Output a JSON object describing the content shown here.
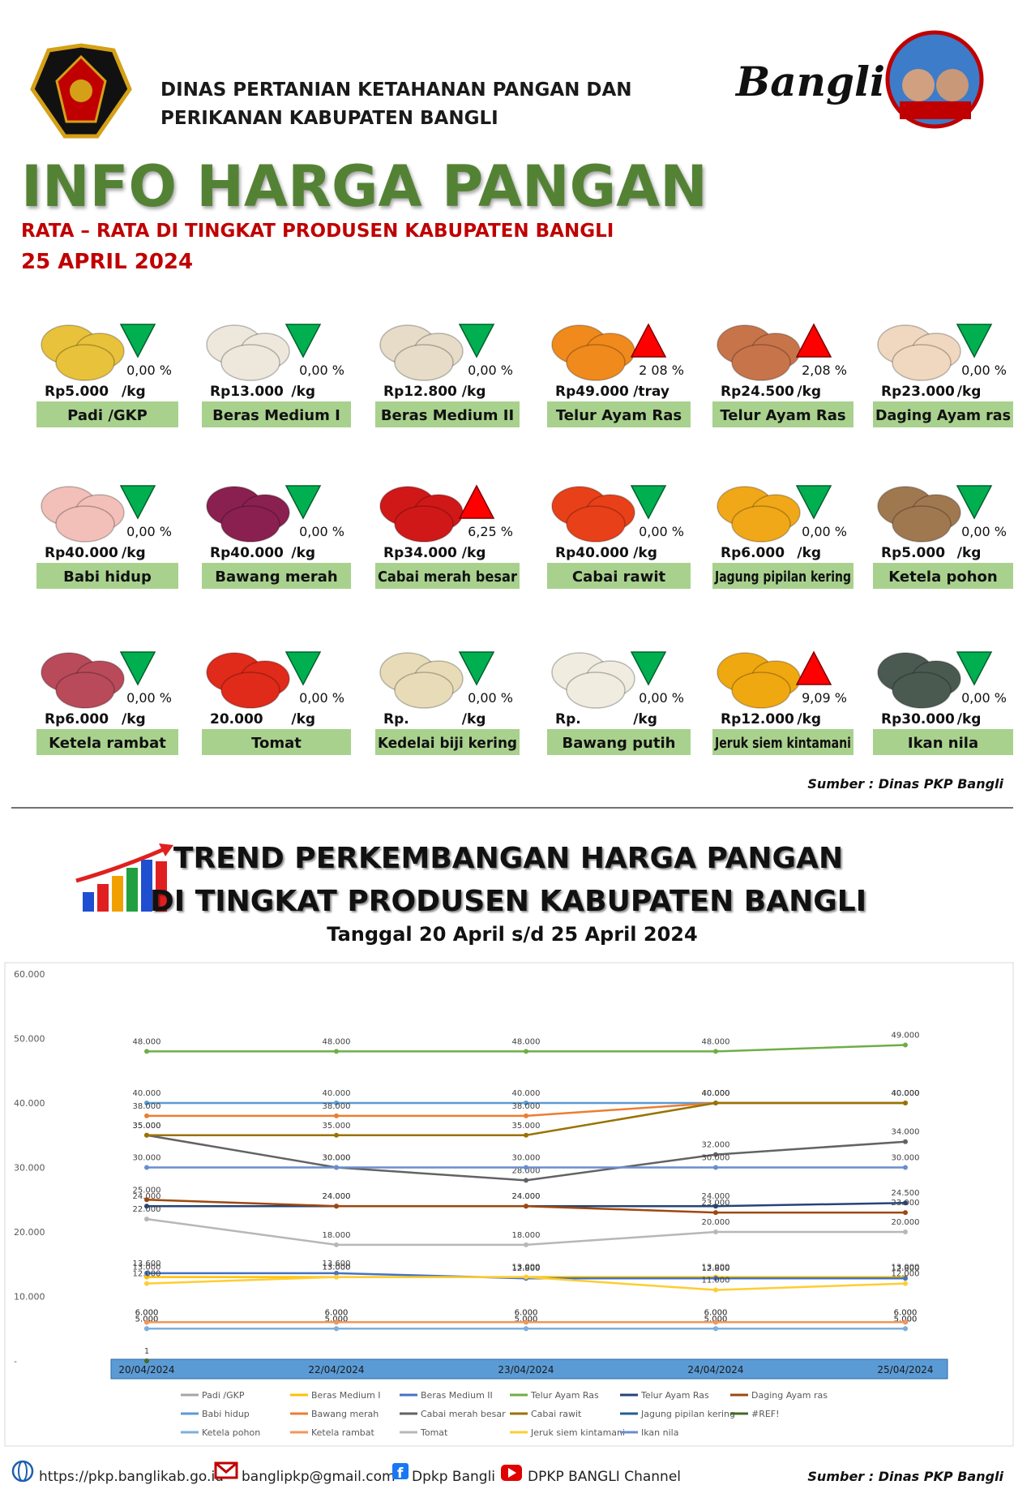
{
  "header": {
    "org": [
      "DINAS PERTANIAN KETAHANAN PANGAN DAN",
      "PERIKANAN KABUPATEN BANGLI"
    ],
    "brand": "Bangli",
    "title": "INFO HARGA PANGAN",
    "subtitle": "RATA – RATA DI TINGKAT PRODUSEN KABUPATEN BANGLI",
    "date": "25 APRIL 2024"
  },
  "items": [
    {
      "name": "Padi /GKP",
      "price": "Rp5.000",
      "unit": "/kg",
      "change": "0,00 %",
      "direction": "down"
    },
    {
      "name": "Beras Medium I",
      "price": "Rp13.000",
      "unit": "/kg",
      "change": "0,00 %",
      "direction": "down"
    },
    {
      "name": "Beras Medium II",
      "price": "Rp12.800",
      "unit": "/kg",
      "change": "0,00 %",
      "direction": "down"
    },
    {
      "name": "Telur Ayam Ras",
      "price": "Rp49.000",
      "unit": "/tray",
      "change": "2 08 %",
      "direction": "up"
    },
    {
      "name": "Telur Ayam Ras",
      "price": "Rp24.500",
      "unit": "/kg",
      "change": "2,08 %",
      "direction": "up"
    },
    {
      "name": "Daging Ayam ras",
      "price": "Rp23.000",
      "unit": "/kg",
      "change": "0,00 %",
      "direction": "down"
    },
    {
      "name": "Babi hidup",
      "price": "Rp40.000",
      "unit": "/kg",
      "change": "0,00 %",
      "direction": "down"
    },
    {
      "name": "Bawang merah",
      "price": "Rp40.000",
      "unit": "/kg",
      "change": "0,00 %",
      "direction": "down"
    },
    {
      "name": "Cabai merah besar",
      "price": "Rp34.000",
      "unit": "/kg",
      "change": "6,25 %",
      "direction": "up"
    },
    {
      "name": "Cabai rawit",
      "price": "Rp40.000",
      "unit": "/kg",
      "change": "0,00 %",
      "direction": "down"
    },
    {
      "name": "Jagung pipilan kering",
      "price": "Rp6.000",
      "unit": "/kg",
      "change": "0,00 %",
      "direction": "down"
    },
    {
      "name": "Ketela pohon",
      "price": "Rp5.000",
      "unit": "/kg",
      "change": "0,00 %",
      "direction": "down"
    },
    {
      "name": "Ketela rambat",
      "price": "Rp6.000",
      "unit": "/kg",
      "change": "0,00 %",
      "direction": "down"
    },
    {
      "name": "Tomat",
      "price": "20.000",
      "unit": "/kg",
      "change": "0,00 %",
      "direction": "down"
    },
    {
      "name": "Kedelai biji kering",
      "price": "Rp.",
      "unit": "/kg",
      "change": "0,00 %",
      "direction": "down"
    },
    {
      "name": "Bawang putih",
      "price": "Rp.",
      "unit": "/kg",
      "change": "0,00 %",
      "direction": "down"
    },
    {
      "name": "Jeruk siem kintamani",
      "price": "Rp12.000",
      "unit": "/kg",
      "change": "9,09 %",
      "direction": "up"
    },
    {
      "name": "Ikan nila",
      "price": "Rp30.000",
      "unit": "/kg",
      "change": "0,00 %",
      "direction": "down"
    }
  ],
  "source": "Sumber : Dinas PKP Bangli",
  "trend": {
    "title": [
      "TREND PERKEMBANGAN HARGA PANGAN",
      "DI TINGKAT PRODUSEN KABUPATEN BANGLI"
    ],
    "date": "Tanggal 20 April s/d 25 April 2024"
  },
  "chart_data": {
    "type": "line",
    "categories": [
      "20/04/2024",
      "22/04/2024",
      "23/04/2024",
      "24/04/2024",
      "25/04/2024"
    ],
    "ylim": [
      0,
      60000
    ],
    "yticks": [
      {
        "value": 0,
        "label": "-"
      },
      {
        "value": 10000,
        "label": "10.000"
      },
      {
        "value": 20000,
        "label": "20.000"
      },
      {
        "value": 30000,
        "label": "30.000"
      },
      {
        "value": 40000,
        "label": "40.000"
      },
      {
        "value": 50000,
        "label": "50.000"
      },
      {
        "value": 60000,
        "label": "60.000"
      }
    ],
    "grid": false,
    "series": [
      {
        "name": "Padi /GKP",
        "color": "#a5a5a5",
        "values": [
          5000,
          5000,
          5000,
          5000,
          5000
        ],
        "value_labels": [
          "5.000",
          "5.000",
          "5.000",
          "5.000",
          "5.000"
        ]
      },
      {
        "name": "Beras Medium I",
        "color": "#ffc000",
        "values": [
          13000,
          13000,
          13000,
          13000,
          13000
        ],
        "value_labels": [
          "13.000",
          "13.000",
          "13.000",
          "13.000",
          "13.000"
        ]
      },
      {
        "name": "Beras Medium II",
        "color": "#4472c4",
        "values": [
          13600,
          13600,
          12800,
          12800,
          12800
        ],
        "value_labels": [
          "13.600",
          "13.600",
          "12.800",
          "12.800",
          "12.800"
        ]
      },
      {
        "name": "Telur Ayam Ras",
        "color": "#70ad47",
        "values": [
          48000,
          48000,
          48000,
          48000,
          49000
        ],
        "value_labels": [
          "48.000",
          "48.000",
          "48.000",
          "48.000",
          "49.000"
        ]
      },
      {
        "name": "Telur Ayam Ras",
        "color": "#264478",
        "values": [
          24000,
          24000,
          24000,
          24000,
          24500
        ],
        "value_labels": [
          "24.000",
          "24.000",
          "24.000",
          "24.000",
          "24.500"
        ]
      },
      {
        "name": "Daging Ayam ras",
        "color": "#9e480e",
        "values": [
          25000,
          24000,
          24000,
          23000,
          23000
        ],
        "value_labels": [
          "25.000",
          "24.000",
          "24.000",
          "23.000",
          "23.000"
        ]
      },
      {
        "name": "Babi hidup",
        "color": "#5b9bd5",
        "values": [
          40000,
          40000,
          40000,
          40000,
          40000
        ],
        "value_labels": [
          "40.000",
          "40.000",
          "40.000",
          "40.000",
          "40.000"
        ]
      },
      {
        "name": "Bawang merah",
        "color": "#ed7d31",
        "values": [
          38000,
          38000,
          38000,
          40000,
          40000
        ],
        "value_labels": [
          "38.000",
          "38.000",
          "38.000",
          "40.000",
          "40.000"
        ]
      },
      {
        "name": "Cabai merah besar",
        "color": "#636363",
        "values": [
          35000,
          30000,
          28000,
          32000,
          34000
        ],
        "value_labels": [
          "35.000",
          "30.000",
          "28.000",
          "32.000",
          "34.000"
        ]
      },
      {
        "name": "Cabai rawit",
        "color": "#997300",
        "values": [
          35000,
          35000,
          35000,
          40000,
          40000
        ],
        "value_labels": [
          "35.000",
          "35.000",
          "35.000",
          "40.000",
          "40.000"
        ]
      },
      {
        "name": "Jagung pipilan kering",
        "color": "#255e91",
        "values": [
          6000,
          6000,
          6000,
          6000,
          6000
        ],
        "value_labels": [
          "6.000",
          "6.000",
          "6.000",
          "6.000",
          "6.000"
        ]
      },
      {
        "name": "#REF!",
        "color": "#43682b",
        "values": [
          1,
          null,
          null,
          null,
          null
        ],
        "value_labels": [
          "1",
          null,
          null,
          null,
          null
        ]
      },
      {
        "name": "Ketela pohon",
        "color": "#7cafdd",
        "values": [
          5000,
          5000,
          5000,
          5000,
          5000
        ],
        "value_labels": [
          "5.000",
          "5.000",
          "5.000",
          "5.000",
          "5.000"
        ]
      },
      {
        "name": "Ketela rambat",
        "color": "#f1975a",
        "values": [
          6000,
          6000,
          6000,
          6000,
          6000
        ],
        "value_labels": [
          "6.000",
          "6.000",
          "6.000",
          "6.000",
          "6.000"
        ]
      },
      {
        "name": "Tomat",
        "color": "#b7b7b7",
        "values": [
          22000,
          18000,
          18000,
          20000,
          20000
        ],
        "value_labels": [
          "22.000",
          "18.000",
          "18.000",
          "20.000",
          "20.000"
        ]
      },
      {
        "name": "Jeruk siem kintamani",
        "color": "#ffcd33",
        "values": [
          12000,
          13000,
          13000,
          11000,
          12000
        ],
        "value_labels": [
          "12.000",
          "13.000",
          "13.000",
          "11.000",
          "12.000"
        ]
      },
      {
        "name": "Ikan nila",
        "color": "#698ed0",
        "values": [
          30000,
          30000,
          30000,
          30000,
          30000
        ],
        "value_labels": [
          "30.000",
          "30.000",
          "30.000",
          "30.000",
          "30.000"
        ]
      }
    ]
  },
  "footer": {
    "website": "https://pkp.banglikab.go.id",
    "email": "banglipkp@gmail.com",
    "facebook": "Dpkp Bangli",
    "youtube": "DPKP BANGLI Channel",
    "source": "Sumber : Dinas PKP Bangli"
  }
}
